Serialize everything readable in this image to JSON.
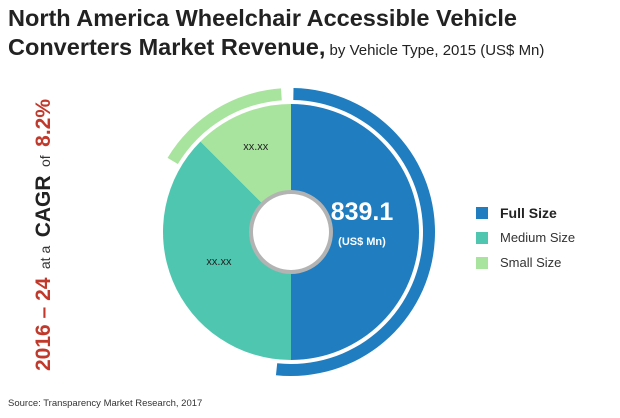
{
  "title": {
    "main": "North America Wheelchair Accessible Vehicle Converters Market Revenue,",
    "sub": " by Vehicle Type, 2015 (US$ Mn)"
  },
  "cagr": {
    "period": "2016 – 24",
    "at_a": "at a",
    "cagr_label": "CAGR",
    "of": "of",
    "value": "8.2%"
  },
  "source": "Source: Transparency Market Research, 2017",
  "colors": {
    "full_size": "#1F7DC0",
    "medium_size": "#4FC7B0",
    "small_size": "#A8E49E",
    "cagr_red": "#C0392B",
    "hole_ring": "#B3B3B3"
  },
  "chart_data": {
    "type": "pie",
    "style": "donut",
    "categories": [
      "Full Size",
      "Medium Size",
      "Small Size"
    ],
    "values": [
      839.1,
      null,
      null
    ],
    "value_fractions": [
      0.5,
      0.375,
      0.125
    ],
    "data_labels": [
      "",
      "xx.xx",
      "xx.xx"
    ],
    "center_label": {
      "value": "839.1",
      "unit": "(US$ Mn)"
    },
    "legend_position": "right",
    "outer_arc_highlight": [
      "Full Size",
      "Small Size"
    ]
  }
}
